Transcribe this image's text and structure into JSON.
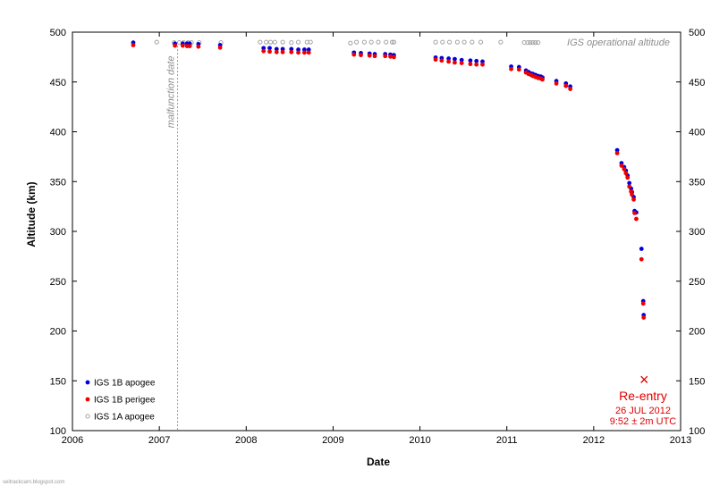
{
  "chart_data": {
    "type": "scatter",
    "xlabel": "Date",
    "ylabel": "Altitude  (km)",
    "xlim": [
      2006,
      2013
    ],
    "ylim": [
      100,
      500
    ],
    "x_ticks": [
      "2006",
      "2007",
      "2008",
      "2009",
      "2010",
      "2011",
      "2012",
      "2013"
    ],
    "y_ticks": [
      "100",
      "150",
      "200",
      "250",
      "300",
      "350",
      "400",
      "450",
      "500"
    ],
    "legend_position": "bottom-left",
    "series": [
      {
        "name": "IGS 1B apogee",
        "color": "#0000dd",
        "marker": "filled-circle",
        "points": [
          [
            2006.7,
            489.5
          ],
          [
            2007.18,
            488.5
          ],
          [
            2007.27,
            488.5
          ],
          [
            2007.32,
            488.5
          ],
          [
            2007.35,
            488.5
          ],
          [
            2007.45,
            488
          ],
          [
            2007.7,
            487
          ],
          [
            2008.2,
            484
          ],
          [
            2008.27,
            484
          ],
          [
            2008.35,
            483
          ],
          [
            2008.42,
            483
          ],
          [
            2008.52,
            483
          ],
          [
            2008.6,
            482.5
          ],
          [
            2008.67,
            482.5
          ],
          [
            2008.72,
            482.5
          ],
          [
            2009.24,
            479.5
          ],
          [
            2009.32,
            479
          ],
          [
            2009.42,
            478.5
          ],
          [
            2009.48,
            478
          ],
          [
            2009.6,
            478
          ],
          [
            2009.66,
            477.5
          ],
          [
            2009.7,
            477
          ],
          [
            2010.18,
            474.5
          ],
          [
            2010.25,
            474
          ],
          [
            2010.33,
            473.5
          ],
          [
            2010.4,
            473
          ],
          [
            2010.48,
            472
          ],
          [
            2010.58,
            471.5
          ],
          [
            2010.65,
            471
          ],
          [
            2010.72,
            470.5
          ],
          [
            2011.05,
            465.5
          ],
          [
            2011.14,
            465
          ],
          [
            2011.22,
            461.5
          ],
          [
            2011.25,
            460
          ],
          [
            2011.28,
            458.5
          ],
          [
            2011.3,
            458
          ],
          [
            2011.33,
            457
          ],
          [
            2011.36,
            456
          ],
          [
            2011.39,
            455.5
          ],
          [
            2011.41,
            454.5
          ],
          [
            2011.57,
            451
          ],
          [
            2011.68,
            448.5
          ],
          [
            2011.73,
            445.5
          ],
          [
            2012.27,
            381.5
          ],
          [
            2012.32,
            368.5
          ],
          [
            2012.35,
            364.5
          ],
          [
            2012.37,
            361
          ],
          [
            2012.39,
            356
          ],
          [
            2012.41,
            348.5
          ],
          [
            2012.43,
            343
          ],
          [
            2012.44,
            339.5
          ],
          [
            2012.46,
            334.5
          ],
          [
            2012.47,
            320.5
          ],
          [
            2012.49,
            319
          ],
          [
            2012.55,
            282.5
          ],
          [
            2012.57,
            230
          ],
          [
            2012.575,
            216
          ]
        ]
      },
      {
        "name": "IGS 1B perigee",
        "color": "#ee0000",
        "marker": "filled-circle",
        "points": [
          [
            2006.7,
            487
          ],
          [
            2007.18,
            486.5
          ],
          [
            2007.27,
            486.5
          ],
          [
            2007.32,
            486
          ],
          [
            2007.35,
            486
          ],
          [
            2007.45,
            485.5
          ],
          [
            2007.7,
            484.5
          ],
          [
            2008.2,
            481
          ],
          [
            2008.27,
            480.5
          ],
          [
            2008.35,
            480
          ],
          [
            2008.42,
            480
          ],
          [
            2008.52,
            480
          ],
          [
            2008.6,
            479.5
          ],
          [
            2008.67,
            479.5
          ],
          [
            2008.72,
            479.5
          ],
          [
            2009.24,
            477.5
          ],
          [
            2009.32,
            477
          ],
          [
            2009.42,
            476.5
          ],
          [
            2009.48,
            476
          ],
          [
            2009.6,
            476
          ],
          [
            2009.66,
            475.5
          ],
          [
            2009.7,
            475
          ],
          [
            2010.18,
            472.5
          ],
          [
            2010.25,
            471.5
          ],
          [
            2010.33,
            470.5
          ],
          [
            2010.4,
            469.5
          ],
          [
            2010.48,
            469
          ],
          [
            2010.58,
            468
          ],
          [
            2010.65,
            467.5
          ],
          [
            2010.72,
            467.5
          ],
          [
            2011.05,
            463
          ],
          [
            2011.14,
            462.5
          ],
          [
            2011.22,
            459.5
          ],
          [
            2011.25,
            458
          ],
          [
            2011.28,
            457
          ],
          [
            2011.3,
            456
          ],
          [
            2011.33,
            455
          ],
          [
            2011.36,
            454
          ],
          [
            2011.39,
            453.5
          ],
          [
            2011.41,
            452.5
          ],
          [
            2011.57,
            448.5
          ],
          [
            2011.68,
            446
          ],
          [
            2011.73,
            443
          ],
          [
            2012.27,
            378.5
          ],
          [
            2012.32,
            366
          ],
          [
            2012.35,
            362.5
          ],
          [
            2012.37,
            358.5
          ],
          [
            2012.39,
            354
          ],
          [
            2012.41,
            345
          ],
          [
            2012.43,
            340
          ],
          [
            2012.44,
            337
          ],
          [
            2012.46,
            332
          ],
          [
            2012.47,
            318.5
          ],
          [
            2012.49,
            312.5
          ],
          [
            2012.55,
            272
          ],
          [
            2012.57,
            227.5
          ],
          [
            2012.575,
            213.5
          ]
        ]
      },
      {
        "name": "IGS 1A apogee",
        "color": "#999999",
        "marker": "open-circle",
        "points": [
          [
            2006.97,
            490
          ],
          [
            2007.17,
            489.5
          ],
          [
            2007.23,
            489.5
          ],
          [
            2007.28,
            489.5
          ],
          [
            2007.33,
            489.5
          ],
          [
            2007.37,
            489.5
          ],
          [
            2007.46,
            489.5
          ],
          [
            2007.71,
            489.5
          ],
          [
            2008.16,
            490
          ],
          [
            2008.23,
            490
          ],
          [
            2008.28,
            490
          ],
          [
            2008.33,
            490
          ],
          [
            2008.42,
            490
          ],
          [
            2008.52,
            489.5
          ],
          [
            2008.6,
            490
          ],
          [
            2008.7,
            490
          ],
          [
            2008.74,
            490
          ],
          [
            2009.2,
            489
          ],
          [
            2009.27,
            490
          ],
          [
            2009.36,
            490
          ],
          [
            2009.44,
            490
          ],
          [
            2009.52,
            490
          ],
          [
            2009.61,
            490
          ],
          [
            2009.68,
            490
          ],
          [
            2009.7,
            490
          ],
          [
            2010.18,
            490
          ],
          [
            2010.26,
            490
          ],
          [
            2010.34,
            490
          ],
          [
            2010.43,
            490
          ],
          [
            2010.51,
            490
          ],
          [
            2010.6,
            490
          ],
          [
            2010.7,
            490
          ],
          [
            2010.93,
            490
          ],
          [
            2011.2,
            489.5
          ],
          [
            2011.24,
            489.5
          ],
          [
            2011.27,
            489.5
          ],
          [
            2011.3,
            489.5
          ],
          [
            2011.33,
            489.5
          ],
          [
            2011.36,
            489.5
          ]
        ]
      }
    ],
    "annotations": {
      "malfunction_label": "malfunction date",
      "malfunction_x": 2007.21,
      "operational_label": "IGS operational altitude",
      "reentry": {
        "marker": "×",
        "x": 2012.58,
        "y": 151,
        "title": "Re-entry",
        "date": "26 JUL 2012",
        "time": "9:52 ± 2m UTC"
      }
    },
    "credit": "seitrackcam.blogspot.com"
  }
}
